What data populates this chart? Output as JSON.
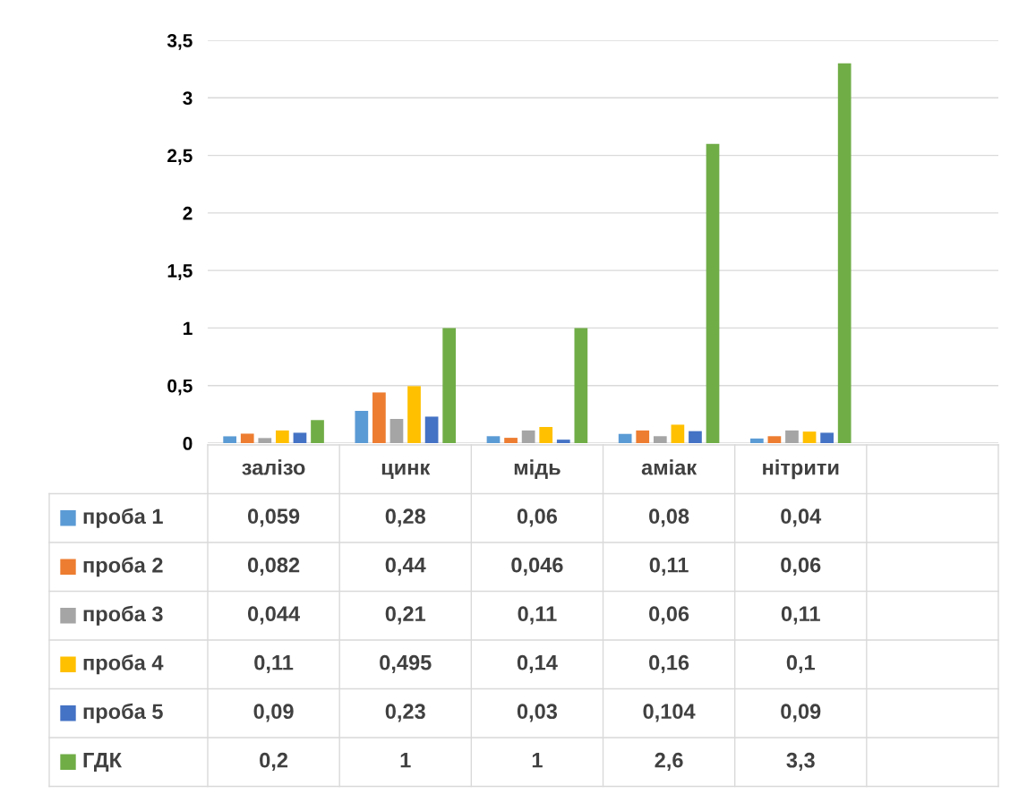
{
  "chart_data": {
    "type": "bar",
    "categories": [
      "залізо",
      "цинк",
      "мідь",
      "аміак",
      "нітрити",
      null
    ],
    "series": [
      {
        "name": "проба 1",
        "color": "#5b9bd5",
        "values": [
          0.059,
          0.28,
          0.06,
          0.08,
          0.04,
          null
        ],
        "value_labels": [
          "0,059",
          "0,28",
          "0,06",
          "0,08",
          "0,04",
          null
        ]
      },
      {
        "name": "проба 2",
        "color": "#ed7d31",
        "values": [
          0.082,
          0.44,
          0.046,
          0.11,
          0.06,
          null
        ],
        "value_labels": [
          "0,082",
          "0,44",
          "0,046",
          "0,11",
          "0,06",
          null
        ]
      },
      {
        "name": "проба 3",
        "color": "#a5a5a5",
        "values": [
          0.044,
          0.21,
          0.11,
          0.06,
          0.11,
          null
        ],
        "value_labels": [
          "0,044",
          "0,21",
          "0,11",
          "0,06",
          "0,11",
          null
        ]
      },
      {
        "name": "проба 4",
        "color": "#ffc000",
        "values": [
          0.11,
          0.495,
          0.14,
          0.16,
          0.1,
          null
        ],
        "value_labels": [
          "0,11",
          "0,495",
          "0,14",
          "0,16",
          "0,1",
          null
        ]
      },
      {
        "name": "проба 5",
        "color": "#4472c4",
        "values": [
          0.09,
          0.23,
          0.03,
          0.104,
          0.09,
          null
        ],
        "value_labels": [
          "0,09",
          "0,23",
          "0,03",
          "0,104",
          "0,09",
          null
        ]
      },
      {
        "name": "ГДК",
        "color": "#70ad47",
        "values": [
          0.2,
          1,
          1,
          2.6,
          3.3,
          null
        ],
        "value_labels": [
          "0,2",
          "1",
          "1",
          "2,6",
          "3,3",
          null
        ]
      }
    ],
    "ylim": [
      0,
      3.5
    ],
    "yticks": [
      0,
      {
        "value": 0.5,
        "label": "0,5"
      },
      1,
      {
        "value": 1.5,
        "label": "1,5"
      },
      2,
      {
        "value": 2.5,
        "label": "2,5"
      },
      3,
      {
        "value": 3.5,
        "label": "3,5"
      }
    ],
    "grid": "y",
    "legend": "bottom"
  }
}
